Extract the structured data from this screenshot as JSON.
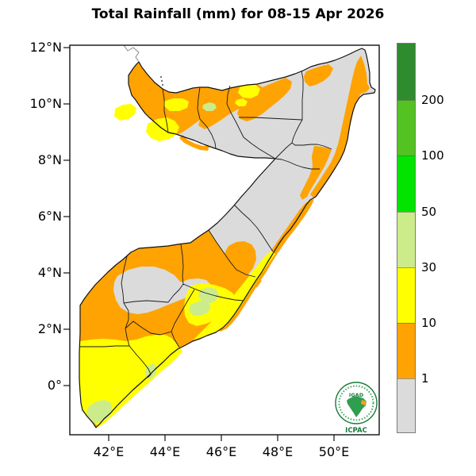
{
  "title": "Total Rainfall (mm) for 08-15 Apr 2026",
  "axes": {
    "y_ticks": [
      "12°N",
      "10°N",
      "8°N",
      "6°N",
      "4°N",
      "2°N",
      "0°"
    ],
    "x_ticks": [
      "42°E",
      "44°E",
      "46°E",
      "48°E",
      "50°E"
    ]
  },
  "legend": {
    "segments": [
      {
        "color": "#2E8B2E",
        "label": ""
      },
      {
        "color": "#53C222",
        "label": "200"
      },
      {
        "color": "#00E400",
        "label": "100"
      },
      {
        "color": "#CCEC8B",
        "label": "50"
      },
      {
        "color": "#FFFF00",
        "label": "30"
      },
      {
        "color": "#FFA303",
        "label": "10"
      },
      {
        "color": "#DBDBDB",
        "label": "1"
      }
    ]
  },
  "map_palette": {
    "below_1mm": "#DBDBDB",
    "mm_1_10": "#FFA303",
    "mm_10_30": "#FFFF00",
    "mm_30_50": "#CCEC8B",
    "mm_50_100": "#00E400",
    "mm_100_200": "#53C222",
    "above_200mm": "#2E8B2E"
  },
  "logo": {
    "org": "IGAD",
    "center": "ICPAC",
    "accent_green": "#177A3C",
    "accent_orange": "#F5A21C"
  },
  "chart_data": {
    "type": "heatmap",
    "title": "Total Rainfall (mm) for 08-15 Apr 2026",
    "region": "Somalia",
    "lon_range_deg_e": [
      40.6,
      51.6
    ],
    "lat_range_deg_n": [
      -1.8,
      12.1
    ],
    "legend_thresholds_mm": [
      1,
      10,
      30,
      50,
      100,
      200
    ],
    "pattern_summary": "Gray (<1mm) over most of north/central Somalia; orange 1-10mm band along NW (Somaliland) and along the Indian Ocean coast; yellow 10-30mm across the south; small 30-50mm pale-green patches near the far south tip and lower Shabelle; legend greens (50-200+) unused on map"
  }
}
